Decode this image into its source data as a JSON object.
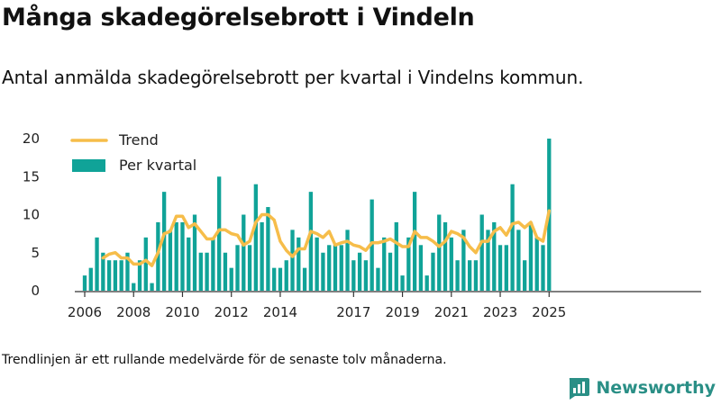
{
  "title": "Många skadegörelsebrott i Vindeln",
  "subtitle": "Antal anmälda skadegörelsebrott per kvartal i Vindelns kommun.",
  "note": "Trendlinjen är ett rullande medelvärde för de senaste tolv månaderna.",
  "brand": "Newsworthy",
  "colors": {
    "bar": "#10a398",
    "trend": "#f6bd4a",
    "axis": "#333333",
    "logo": "#2a8f86"
  },
  "chart_data": {
    "type": "bar",
    "title": "Många skadegörelsebrott i Vindeln",
    "xlabel": "",
    "ylabel": "",
    "ylim": [
      0,
      20
    ],
    "yticks": [
      0,
      5,
      10,
      15,
      20
    ],
    "xtick_labels": [
      "2006",
      "2008",
      "2010",
      "2012",
      "2014",
      "2017",
      "2019",
      "2021",
      "2023",
      "2025"
    ],
    "grid": false,
    "legend_position": "top-left",
    "series": [
      {
        "name": "Per kvartal",
        "type": "bar",
        "start": "2006 Q1",
        "frequency": "quarter",
        "values": [
          2,
          3,
          7,
          5,
          4,
          4,
          4,
          5,
          1,
          4,
          7,
          1,
          9,
          13,
          8,
          9,
          9,
          7,
          10,
          5,
          5,
          7,
          15,
          5,
          3,
          6,
          10,
          6,
          14,
          9,
          11,
          3,
          3,
          4,
          8,
          7,
          3,
          13,
          7,
          5,
          6,
          6,
          6,
          8,
          4,
          5,
          4,
          12,
          3,
          7,
          5,
          9,
          2,
          7,
          13,
          6,
          2,
          5,
          10,
          9,
          7,
          4,
          8,
          4,
          4,
          10,
          8,
          9,
          6,
          6,
          14,
          8,
          4,
          9,
          7,
          6,
          20
        ]
      },
      {
        "name": "Trend",
        "type": "line",
        "values": [
          null,
          null,
          null,
          4.3,
          4.8,
          5.0,
          4.3,
          4.3,
          3.5,
          3.5,
          4.0,
          3.3,
          5.0,
          7.5,
          7.8,
          9.8,
          9.8,
          8.3,
          8.8,
          7.8,
          6.8,
          6.8,
          8.0,
          8.0,
          7.5,
          7.3,
          6.0,
          6.5,
          9.0,
          10.0,
          10.0,
          9.3,
          6.5,
          5.3,
          4.5,
          5.5,
          5.5,
          7.8,
          7.5,
          7.0,
          7.8,
          6.0,
          6.3,
          6.5,
          6.0,
          5.8,
          5.3,
          6.3,
          6.3,
          6.5,
          6.8,
          6.3,
          5.8,
          5.8,
          7.8,
          7.0,
          7.0,
          6.5,
          5.8,
          6.5,
          7.8,
          7.5,
          7.0,
          5.8,
          5.0,
          6.5,
          6.5,
          7.8,
          8.3,
          7.3,
          8.8,
          9.0,
          8.3,
          9.0,
          7.0,
          6.5,
          10.5
        ]
      }
    ]
  }
}
